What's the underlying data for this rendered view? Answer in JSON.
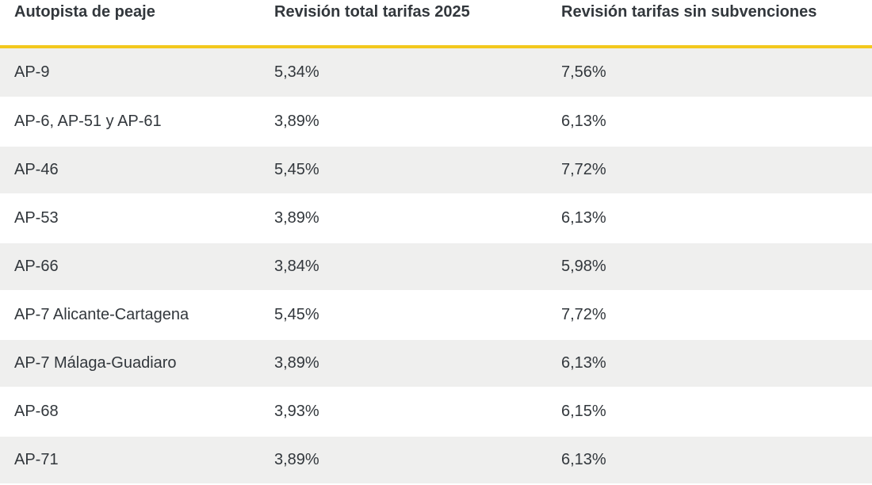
{
  "colors": {
    "accent": "#f3c81d",
    "row_alt": "#efefee",
    "text": "#32373c"
  },
  "chart_data": {
    "type": "table",
    "columns": [
      "Autopista de peaje",
      "Revisión total tarifas 2025",
      "Revisión tarifas sin subvenciones"
    ],
    "rows": [
      [
        "AP-9",
        "5,34%",
        "7,56%"
      ],
      [
        "AP-6, AP-51 y AP-61",
        "3,89%",
        "6,13%"
      ],
      [
        "AP-46",
        "5,45%",
        "7,72%"
      ],
      [
        "AP-53",
        "3,89%",
        "6,13%"
      ],
      [
        "AP-66",
        "3,84%",
        "5,98%"
      ],
      [
        "AP-7 Alicante-Cartagena",
        "5,45%",
        "7,72%"
      ],
      [
        "AP-7 Málaga-Guadiaro",
        "3,89%",
        "6,13%"
      ],
      [
        "AP-68",
        "3,93%",
        "6,15%"
      ],
      [
        "AP-71",
        "3,89%",
        "6,13%"
      ]
    ],
    "legend_position": "none",
    "grid": false,
    "notes": "Alternating row stripes, odd rows shaded; gold rule under header"
  }
}
